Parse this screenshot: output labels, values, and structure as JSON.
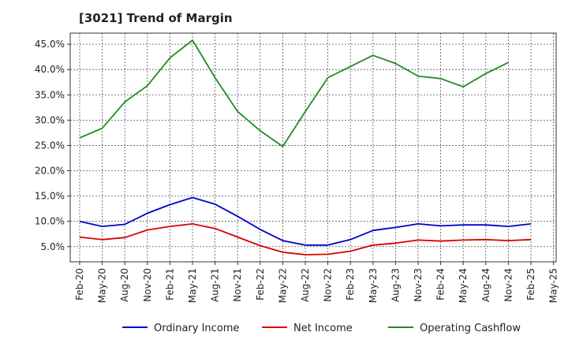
{
  "chart_data": {
    "type": "line",
    "title": "[3021]  Trend of Margin",
    "xlabel": "",
    "ylabel": "",
    "categories": [
      "Feb-20",
      "May-20",
      "Aug-20",
      "Nov-20",
      "Feb-21",
      "May-21",
      "Aug-21",
      "Nov-21",
      "Feb-22",
      "May-22",
      "Aug-22",
      "Nov-22",
      "Feb-23",
      "May-23",
      "Aug-23",
      "Nov-23",
      "Feb-24",
      "May-24",
      "Aug-24",
      "Nov-24",
      "Feb-25",
      "May-25"
    ],
    "y_tick_labels": [
      "5.0%",
      "10.0%",
      "15.0%",
      "20.0%",
      "25.0%",
      "30.0%",
      "35.0%",
      "40.0%",
      "45.0%"
    ],
    "y_ticks": [
      5,
      10,
      15,
      20,
      25,
      30,
      35,
      40,
      45
    ],
    "ylim": [
      2.0,
      47.2
    ],
    "grid": true,
    "legend_position": "bottom",
    "series": [
      {
        "name": "Ordinary Income",
        "color": "#0000cc",
        "values": [
          10.0,
          9.0,
          9.4,
          11.6,
          13.3,
          14.7,
          13.4,
          11.0,
          8.4,
          6.2,
          5.3,
          5.3,
          6.4,
          8.2,
          8.8,
          9.5,
          9.1,
          9.3,
          9.3,
          9.0,
          9.5,
          null
        ]
      },
      {
        "name": "Net Income",
        "color": "#dd0000",
        "values": [
          6.9,
          6.4,
          6.8,
          8.3,
          9.0,
          9.5,
          8.6,
          6.9,
          5.2,
          3.9,
          3.4,
          3.5,
          4.1,
          5.3,
          5.7,
          6.3,
          6.1,
          6.3,
          6.4,
          6.2,
          6.4,
          null
        ]
      },
      {
        "name": "Operating Cashflow",
        "color": "#228b22",
        "values": [
          26.5,
          28.4,
          33.6,
          36.8,
          42.3,
          45.8,
          38.4,
          31.7,
          27.9,
          24.8,
          31.7,
          38.4,
          40.6,
          42.8,
          41.2,
          38.7,
          38.2,
          36.6,
          39.2,
          41.4,
          null,
          null
        ]
      }
    ]
  }
}
